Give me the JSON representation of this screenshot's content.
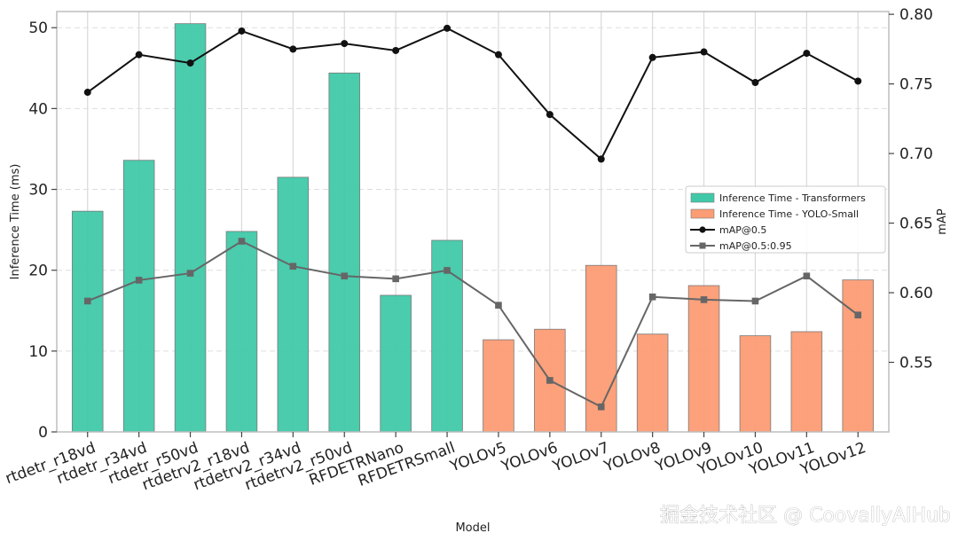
{
  "chart_data": {
    "type": "bar",
    "xlabel": "Model",
    "ylabel": "Inference Time (ms)",
    "y2label": "mAP",
    "ylim": [
      0,
      52
    ],
    "y2lim": [
      0.5,
      0.802
    ],
    "yticks": [
      "0",
      "10",
      "20",
      "30",
      "40",
      "50"
    ],
    "y2ticks": [
      "0.55",
      "0.60",
      "0.65",
      "0.70",
      "0.75",
      "0.80"
    ],
    "grid": true,
    "legend_position": "center-right",
    "categories": [
      "rtdetr_r18vd",
      "rtdetr_r34vd",
      "rtdetr_r50vd",
      "rtdetrv2_r18vd",
      "rtdetrv2_r34vd",
      "rtdetrv2_r50vd",
      "RFDETRNano",
      "RFDETRSmall",
      "YOLOv5",
      "YOLOv6",
      "YOLOv7",
      "YOLOv8",
      "YOLOv9",
      "YOLOv10",
      "YOLOv11",
      "YOLOv12"
    ],
    "series": [
      {
        "name": "Inference Time - Transformers",
        "kind": "bar",
        "axis": "left",
        "color": "#40c9a9",
        "values": [
          27.3,
          33.6,
          50.5,
          24.8,
          31.5,
          44.4,
          16.9,
          23.7,
          null,
          null,
          null,
          null,
          null,
          null,
          null,
          null
        ]
      },
      {
        "name": "Inference Time - YOLO-Small",
        "kind": "bar",
        "axis": "left",
        "color": "#fc9c74",
        "values": [
          null,
          null,
          null,
          null,
          null,
          null,
          null,
          null,
          11.4,
          12.7,
          20.6,
          12.1,
          18.1,
          11.9,
          12.4,
          18.8
        ]
      },
      {
        "name": "mAP@0.5",
        "kind": "line",
        "axis": "right",
        "color": "#111111",
        "marker": "circle",
        "values": [
          0.744,
          0.771,
          0.765,
          0.788,
          0.775,
          0.779,
          0.774,
          0.79,
          0.771,
          0.728,
          0.696,
          0.769,
          0.773,
          0.751,
          0.772,
          0.752
        ]
      },
      {
        "name": "mAP@0.5:0.95",
        "kind": "line",
        "axis": "right",
        "color": "#666666",
        "marker": "square",
        "values": [
          0.594,
          0.609,
          0.614,
          0.637,
          0.619,
          0.612,
          0.61,
          0.616,
          0.591,
          0.537,
          0.518,
          0.597,
          0.595,
          0.594,
          0.612,
          0.584
        ]
      }
    ]
  },
  "watermark": "掘金技术社区 @ CoovallyAIHub"
}
